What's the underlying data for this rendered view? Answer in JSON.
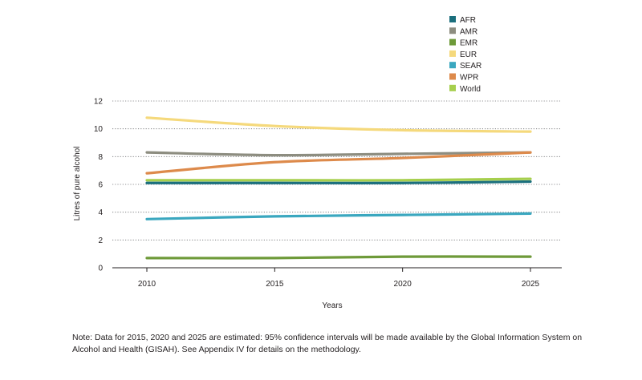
{
  "chart_data": {
    "type": "line",
    "x": [
      2010,
      2015,
      2020,
      2025
    ],
    "xlabel": "Years",
    "ylabel": "Litres of pure alcohol",
    "ylim": [
      0,
      12
    ],
    "yticks": [
      0,
      2,
      4,
      6,
      8,
      10,
      12
    ],
    "grid": "horizontal dotted",
    "legend_position": "top-right",
    "series": [
      {
        "name": "AFR",
        "color": "#1b6f7d",
        "values": [
          6.1,
          6.1,
          6.1,
          6.2
        ]
      },
      {
        "name": "AMR",
        "color": "#8d8d80",
        "values": [
          8.3,
          8.1,
          8.2,
          8.3
        ]
      },
      {
        "name": "EMR",
        "color": "#6e9a39",
        "values": [
          0.7,
          0.7,
          0.8,
          0.8
        ]
      },
      {
        "name": "EUR",
        "color": "#f5d97c",
        "values": [
          10.8,
          10.2,
          9.9,
          9.8
        ]
      },
      {
        "name": "SEAR",
        "color": "#3aa7bf",
        "values": [
          3.5,
          3.7,
          3.8,
          3.9
        ]
      },
      {
        "name": "WPR",
        "color": "#dd8a4b",
        "values": [
          6.8,
          7.6,
          7.9,
          8.3
        ]
      },
      {
        "name": "World",
        "color": "#a6cf4d",
        "values": [
          6.3,
          6.3,
          6.3,
          6.4
        ]
      }
    ]
  },
  "note": "Note: Data for 2015, 2020 and 2025 are estimated: 95% confidence intervals will be made available by the Global Information System on Alcohol and Health (GISAH). See Appendix IV for details on the methodology."
}
